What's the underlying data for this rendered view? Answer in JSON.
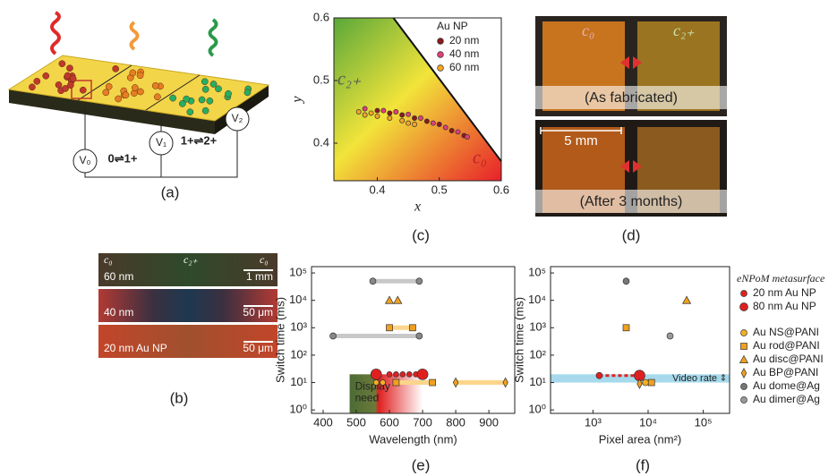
{
  "figure": {
    "panel_labels": [
      "(a)",
      "(b)",
      "(c)",
      "(d)",
      "(e)",
      "(f)"
    ],
    "a": {
      "reactions": [
        "0⇌1+",
        "1+⇌2+"
      ],
      "electrodes": [
        "V₀",
        "V₁",
        "V₂"
      ]
    },
    "b": {
      "state_labels": [
        "c₀",
        "c₂₊",
        "c₀"
      ],
      "rows": [
        {
          "sample": "60 nm",
          "scale": "1 mm"
        },
        {
          "sample": "40 nm",
          "scale": "50 μm"
        },
        {
          "sample": "20 nm Au NP",
          "scale": "50 μm"
        }
      ]
    },
    "d": {
      "labels": [
        "c₀",
        "c₂₊"
      ],
      "states": [
        "(As fabricated)",
        "(After 3 months)"
      ],
      "scale": "5 mm"
    }
  },
  "chart_data": [
    {
      "type": "scatter",
      "x_label": "x",
      "y_label": "y",
      "xlim": [
        0.33,
        0.6
      ],
      "ylim": [
        0.34,
        0.6
      ],
      "xticks": [
        0.4,
        0.5,
        0.6
      ],
      "yticks": [
        0.4,
        0.5,
        0.6
      ],
      "log_x": false,
      "log_y": false,
      "legend": "upper right",
      "legend_title": "Au NP",
      "annotations": [
        "c₂₊",
        "c₀"
      ],
      "boundary": {
        "x": [
          0.426,
          0.6
        ],
        "y": [
          0.6,
          0.371
        ]
      },
      "series": [
        {
          "name": "20 nm",
          "color": "#8b1a1a",
          "marker": "circle",
          "size": 2.6,
          "x": [
            0.4,
            0.42,
            0.44,
            0.46,
            0.48,
            0.5,
            0.52,
            0.54
          ],
          "values": [
            0.452,
            0.448,
            0.445,
            0.44,
            0.435,
            0.43,
            0.42,
            0.412
          ]
        },
        {
          "name": "40 nm",
          "color": "#e0407a",
          "marker": "circle",
          "size": 2.6,
          "x": [
            0.38,
            0.41,
            0.43,
            0.45,
            0.47,
            0.49,
            0.51,
            0.53,
            0.545
          ],
          "values": [
            0.455,
            0.452,
            0.45,
            0.446,
            0.44,
            0.432,
            0.425,
            0.418,
            0.41
          ]
        },
        {
          "name": "60 nm",
          "color": "#f5a623",
          "marker": "circle",
          "size": 2.6,
          "x": [
            0.37,
            0.38,
            0.39,
            0.4,
            0.42,
            0.44,
            0.45,
            0.46
          ],
          "values": [
            0.45,
            0.445,
            0.448,
            0.443,
            0.44,
            0.436,
            0.432,
            0.43
          ]
        }
      ]
    },
    {
      "type": "scatter",
      "x_label": "Wavelength (nm)",
      "y_label": "Switch time (ms)",
      "xlim": [
        365,
        978
      ],
      "ylim": [
        0.75,
        170000
      ],
      "log_x": false,
      "log_y": true,
      "xticks": [
        400,
        500,
        600,
        700,
        800,
        900
      ],
      "yticks": [
        {
          "value": 1,
          "label": "10⁰"
        },
        {
          "value": 10,
          "label": "10¹"
        },
        {
          "value": 100,
          "label": "10²"
        },
        {
          "value": 1000,
          "label": "10³"
        },
        {
          "value": 10000,
          "label": "10⁴"
        },
        {
          "value": 100000,
          "label": "10⁵"
        }
      ],
      "display_need": {
        "text": [
          "Display",
          "need"
        ],
        "x": [
          480,
          700
        ],
        "top": 20
      },
      "series": [
        {
          "color": "#888888",
          "line": "#c8c8c8",
          "marker": "circle",
          "size": 3.5,
          "x": [
            550,
            690
          ],
          "values": [
            50000,
            50000
          ]
        },
        {
          "color": "#888888",
          "line": "#c8c8c8",
          "marker": "circle",
          "size": 3.5,
          "x": [
            430,
            690
          ],
          "values": [
            500,
            500
          ]
        },
        {
          "color": "#f0a020",
          "marker": "triangle",
          "size": 4.5,
          "x": [
            600,
            625
          ],
          "values": [
            10000,
            10000
          ]
        },
        {
          "color": "#f0a020",
          "line": "#fbd58a",
          "marker": "square",
          "size": 3.5,
          "x": [
            600,
            670
          ],
          "values": [
            1000,
            1000
          ]
        },
        {
          "color": "#f5b020",
          "marker": "circle",
          "size": 3,
          "x": [
            560,
            580
          ],
          "values": [
            10,
            10
          ]
        },
        {
          "color": "#f0a020",
          "line": "#fbd58a",
          "marker": "square",
          "size": 3.5,
          "x": [
            620,
            730
          ],
          "values": [
            10,
            10
          ]
        },
        {
          "color": "#f0a020",
          "line": "#fbd58a",
          "marker": "diamond",
          "size": 4,
          "x": [
            800,
            950
          ],
          "values": [
            10,
            10
          ]
        },
        {
          "color": "#e02020",
          "marker": "circle",
          "size": 3,
          "x": [
            600,
            620,
            640,
            660,
            680
          ],
          "values": [
            20,
            20,
            20,
            20,
            20
          ]
        },
        {
          "color": "#e02020",
          "marker": "circle",
          "size": 6,
          "x": [
            560,
            700
          ],
          "values": [
            20,
            20
          ]
        }
      ]
    },
    {
      "type": "scatter",
      "x_label": "Pixel area (nm²)",
      "y_label": "Switch time (ms)",
      "xlim": [
        170,
        300000
      ],
      "ylim": [
        0.75,
        170000
      ],
      "log_x": true,
      "log_y": true,
      "xticks": [
        {
          "value": 1000,
          "label": "10³"
        },
        {
          "value": 10000,
          "label": "10⁴"
        },
        {
          "value": 100000,
          "label": "10⁵"
        }
      ],
      "yticks": [
        {
          "value": 1,
          "label": "10⁰"
        },
        {
          "value": 10,
          "label": "10¹"
        },
        {
          "value": 100,
          "label": "10²"
        },
        {
          "value": 1000,
          "label": "10³"
        },
        {
          "value": 10000,
          "label": "10⁴"
        },
        {
          "value": 100000,
          "label": "10⁵"
        }
      ],
      "legend": "outside right",
      "legend_title": "eNPoM metasurface",
      "video_rate": {
        "text": "Video rate",
        "y": [
          10,
          20
        ]
      },
      "dotted_link": {
        "x": [
          1300,
          7000
        ],
        "y": [
          18,
          18
        ],
        "color": "#e02020"
      },
      "series": [
        {
          "name": "20 nm Au NP",
          "color": "#e02020",
          "marker": "circle",
          "size": 3.5,
          "x": [
            1300
          ],
          "values": [
            18
          ]
        },
        {
          "name": "80 nm Au NP",
          "color": "#e02020",
          "marker": "circle",
          "size": 6,
          "x": [
            7000
          ],
          "values": [
            18
          ]
        },
        {
          "name": "Au NS@PANI",
          "color": "#f5b020",
          "marker": "circle",
          "size": 3.5,
          "x": [
            9000
          ],
          "values": [
            10
          ]
        },
        {
          "name": "Au rod@PANI",
          "color": "#f0a020",
          "marker": "square",
          "size": 3.5,
          "x": [
            4000,
            11500
          ],
          "values": [
            1000,
            10
          ]
        },
        {
          "name": "Au disc@PANI",
          "color": "#f0a020",
          "marker": "triangle",
          "size": 4.5,
          "x": [
            50000
          ],
          "values": [
            10000
          ]
        },
        {
          "name": "Au BP@PANI",
          "color": "#f0a020",
          "marker": "diamond",
          "size": 4,
          "x": [
            7000
          ],
          "values": [
            9
          ]
        },
        {
          "name": "Au dome@Ag",
          "color": "#777777",
          "marker": "circle",
          "size": 3.5,
          "x": [
            4000
          ],
          "values": [
            50000
          ]
        },
        {
          "name": "Au dimer@Ag",
          "color": "#999999",
          "marker": "circle",
          "size": 3.5,
          "x": [
            25000
          ],
          "values": [
            500
          ]
        }
      ]
    }
  ]
}
